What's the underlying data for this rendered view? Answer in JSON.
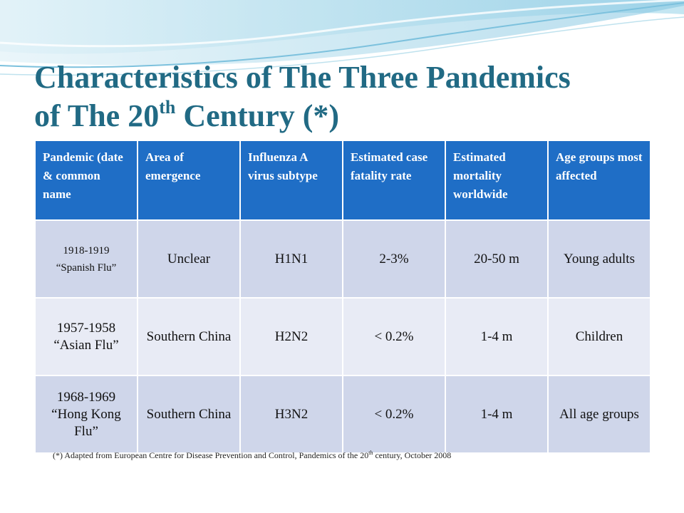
{
  "title": {
    "line1": "Characteristics of The Three Pandemics",
    "line2_pre": "of The 20",
    "line2_sup": "th",
    "line2_post": " Century (*)"
  },
  "table": {
    "headers": [
      "Pandemic (date & common name",
      "Area of emergence",
      "Influenza A virus subtype",
      "Estimated case fatality rate",
      "Estimated mortality worldwide",
      "Age groups most affected"
    ],
    "rows": [
      {
        "dates": "1918-1919",
        "name": "“Spanish Flu”",
        "area": "Unclear",
        "subtype": "H1N1",
        "cfr": "2-3%",
        "mortality": "20-50 m",
        "ages": "Young adults"
      },
      {
        "dates": "1957-1958",
        "name": "“Asian Flu”",
        "area": "Southern China",
        "subtype": "H2N2",
        "cfr": "< 0.2%",
        "mortality": "1-4 m",
        "ages": "Children"
      },
      {
        "dates": "1968-1969",
        "name": "“Hong Kong Flu”",
        "area": "Southern China",
        "subtype": "H3N2",
        "cfr": "< 0.2%",
        "mortality": "1-4 m",
        "ages": "All age groups"
      }
    ]
  },
  "footnote": {
    "pre": "(*) Adapted from European Centre for Disease  Prevention  and Control, Pandemics of the 20",
    "sup": "th",
    "post": " century, October 2008"
  }
}
